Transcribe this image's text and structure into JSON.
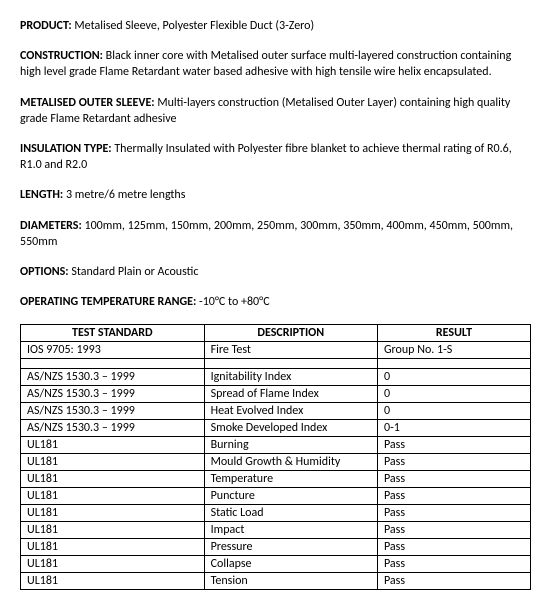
{
  "fields": [
    {
      "label": "PRODUCT:",
      "value": " Metalised Sleeve, Polyester Flexible Duct (3-Zero)"
    },
    {
      "label": "CONSTRUCTION:",
      "value": " Black inner core with Metalised outer surface multi-layered construction containing high level grade Flame Retardant water based adhesive with high tensile wire helix encapsulated."
    },
    {
      "label": "METALISED OUTER SLEEVE:",
      "value": " Multi-layers construction (Metalised Outer Layer) containing high quality grade Flame Retardant adhesive"
    },
    {
      "label": "INSULATION TYPE:",
      "value": " Thermally Insulated with Polyester fibre blanket to achieve thermal rating of R0.6, R1.0 and R2.0"
    },
    {
      "label": "LENGTH:",
      "value": " 3 metre/6 metre lengths"
    },
    {
      "label": "DIAMETERS:",
      "value": " 100mm, 125mm, 150mm, 200mm, 250mm, 300mm, 350mm, 400mm, 450mm, 500mm, 550mm"
    },
    {
      "label": "OPTIONS:",
      "value": " Standard Plain or Acoustic"
    },
    {
      "label": "OPERATING TEMPERATURE RANGE:",
      "value": " -10°C to +80°C"
    }
  ],
  "table": {
    "headers": [
      "TEST STANDARD",
      "DESCRIPTION",
      "RESULT"
    ],
    "rows": [
      [
        "IOS 9705: 1993",
        "Fire Test",
        "Group No. 1-S"
      ],
      "spacer",
      [
        "AS/NZS 1530.3 – 1999",
        "Ignitability Index",
        "0"
      ],
      [
        "AS/NZS 1530.3 – 1999",
        "Spread of Flame Index",
        "0"
      ],
      [
        "AS/NZS 1530.3 – 1999",
        "Heat Evolved Index",
        "0"
      ],
      [
        "AS/NZS 1530.3 – 1999",
        "Smoke Developed Index",
        "0-1"
      ],
      [
        "UL181",
        "Burning",
        "Pass"
      ],
      [
        "UL181",
        "Mould Growth & Humidity",
        "Pass"
      ],
      [
        "UL181",
        "Temperature",
        "Pass"
      ],
      [
        "UL181",
        "Puncture",
        "Pass"
      ],
      [
        "UL181",
        "Static Load",
        "Pass"
      ],
      [
        "UL181",
        "Impact",
        "Pass"
      ],
      [
        "UL181",
        "Pressure",
        "Pass"
      ],
      [
        "UL181",
        "Collapse",
        "Pass"
      ],
      [
        "UL181",
        "Tension",
        "Pass"
      ]
    ]
  }
}
